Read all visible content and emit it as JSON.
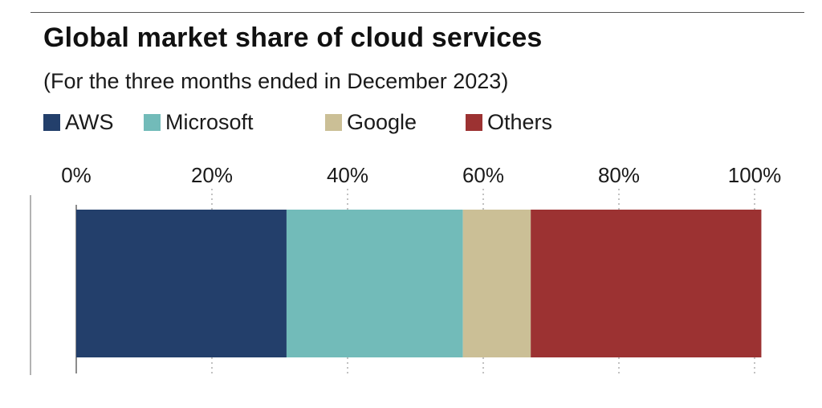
{
  "title": "Global market share of cloud services",
  "subtitle": "(For the three months ended in December 2023)",
  "chart_data": {
    "type": "bar",
    "orientation": "horizontal",
    "stacked": true,
    "title": "Global market share of cloud services",
    "subtitle": "(For the three months ended in December 2023)",
    "xlim": [
      0,
      100
    ],
    "ticks": [
      "0%",
      "20%",
      "40%",
      "60%",
      "80%",
      "100%"
    ],
    "tick_values": [
      0,
      20,
      40,
      60,
      80,
      100
    ],
    "grid": "vertical dotted",
    "legend_position": "top-left",
    "series": [
      {
        "name": "AWS",
        "value": 31,
        "color": "#233f6b"
      },
      {
        "name": "Microsoft",
        "value": 26,
        "color": "#72bbb9"
      },
      {
        "name": "Google",
        "value": 10,
        "color": "#cbbf96"
      },
      {
        "name": "Others",
        "value": 34,
        "color": "#9c3232"
      }
    ]
  }
}
